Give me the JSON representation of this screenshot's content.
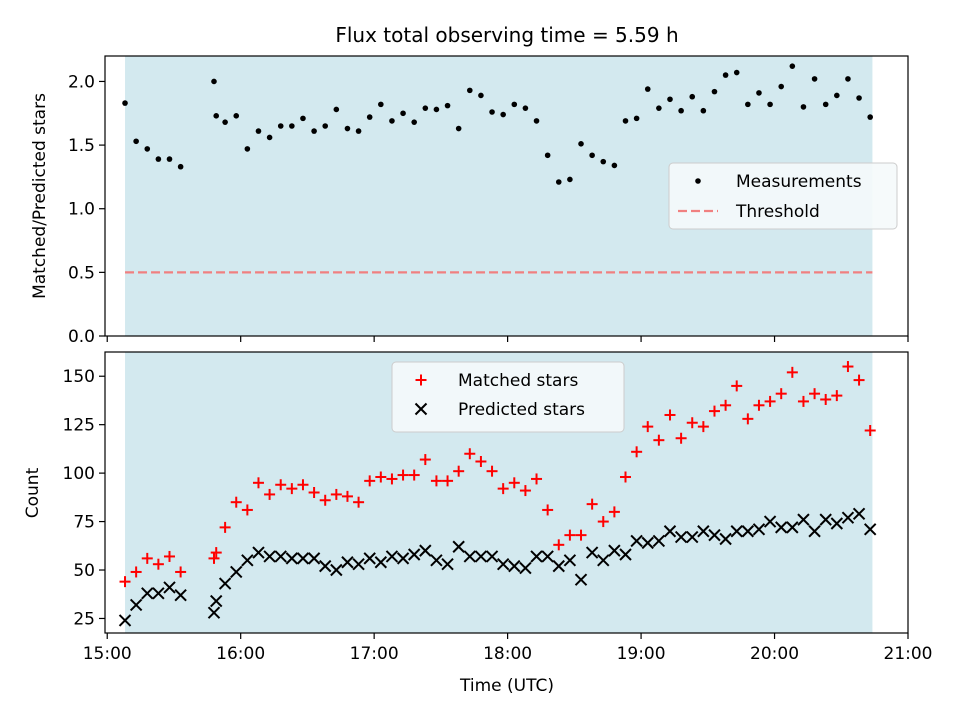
{
  "chart_data": [
    {
      "type": "scatter",
      "title": "Flux total observing time = 5.59 h",
      "ylabel": "Matched/Predicted stars",
      "ylim": [
        0,
        2.2
      ],
      "yticks": [
        "0.0",
        "0.5",
        "1.0",
        "1.5",
        "2.0"
      ],
      "shaded_interval": [
        "15:08",
        "20:44"
      ],
      "threshold": 0.5,
      "legend": {
        "placement": "center-right",
        "entries": [
          "Measurements",
          "Threshold"
        ]
      },
      "series": [
        {
          "name": "Measurements",
          "x": [
            "15:08",
            "15:13",
            "15:18",
            "15:23",
            "15:28",
            "15:33",
            "15:48",
            "15:49",
            "15:53",
            "15:58",
            "16:03",
            "16:08",
            "16:13",
            "16:18",
            "16:23",
            "16:28",
            "16:33",
            "16:38",
            "16:43",
            "16:48",
            "16:53",
            "16:58",
            "17:03",
            "17:08",
            "17:13",
            "17:18",
            "17:23",
            "17:28",
            "17:33",
            "17:38",
            "17:43",
            "17:48",
            "17:53",
            "17:58",
            "18:03",
            "18:08",
            "18:13",
            "18:18",
            "18:23",
            "18:28",
            "18:33",
            "18:38",
            "18:43",
            "18:48",
            "18:53",
            "18:58",
            "19:03",
            "19:08",
            "19:13",
            "19:18",
            "19:23",
            "19:28",
            "19:33",
            "19:38",
            "19:43",
            "19:48",
            "19:53",
            "19:58",
            "20:03",
            "20:08",
            "20:13",
            "20:18",
            "20:23",
            "20:28",
            "20:33",
            "20:38",
            "20:43"
          ],
          "y": [
            1.83,
            1.53,
            1.47,
            1.39,
            1.39,
            1.33,
            2.0,
            1.73,
            1.68,
            1.73,
            1.47,
            1.61,
            1.56,
            1.65,
            1.65,
            1.71,
            1.61,
            1.65,
            1.78,
            1.63,
            1.61,
            1.72,
            1.82,
            1.69,
            1.75,
            1.68,
            1.79,
            1.78,
            1.81,
            1.63,
            1.93,
            1.89,
            1.76,
            1.74,
            1.82,
            1.79,
            1.69,
            1.42,
            1.21,
            1.23,
            1.51,
            1.42,
            1.37,
            1.34,
            1.69,
            1.71,
            1.94,
            1.79,
            1.86,
            1.77,
            1.88,
            1.77,
            1.92,
            2.05,
            2.07,
            1.82,
            1.91,
            1.82,
            1.96,
            2.12,
            1.8,
            2.02,
            1.82,
            1.89,
            2.02,
            1.87,
            1.72
          ]
        },
        {
          "name": "Threshold",
          "x": [
            "15:08",
            "20:44"
          ],
          "y": [
            0.5,
            0.5
          ]
        }
      ]
    },
    {
      "type": "scatter",
      "ylabel": "Count",
      "xlabel": "Time (UTC)",
      "xlim": [
        "14:59",
        "21:00"
      ],
      "xticks": [
        "15:00",
        "16:00",
        "17:00",
        "18:00",
        "19:00",
        "20:00",
        "21:00"
      ],
      "ylim": [
        17.5,
        162.5
      ],
      "yticks": [
        "25",
        "50",
        "75",
        "100",
        "125",
        "150"
      ],
      "shaded_interval": [
        "15:08",
        "20:44"
      ],
      "legend": {
        "placement": "top-center",
        "entries": [
          "Matched stars",
          "Predicted stars"
        ]
      },
      "series": [
        {
          "name": "Matched stars",
          "x": [
            "15:08",
            "15:13",
            "15:18",
            "15:23",
            "15:28",
            "15:33",
            "15:48",
            "15:49",
            "15:53",
            "15:58",
            "16:03",
            "16:08",
            "16:13",
            "16:18",
            "16:23",
            "16:28",
            "16:33",
            "16:38",
            "16:43",
            "16:48",
            "16:53",
            "16:58",
            "17:03",
            "17:08",
            "17:13",
            "17:18",
            "17:23",
            "17:28",
            "17:33",
            "17:38",
            "17:43",
            "17:48",
            "17:53",
            "17:58",
            "18:03",
            "18:08",
            "18:13",
            "18:18",
            "18:23",
            "18:28",
            "18:33",
            "18:38",
            "18:43",
            "18:48",
            "18:53",
            "18:58",
            "19:03",
            "19:08",
            "19:13",
            "19:18",
            "19:23",
            "19:28",
            "19:33",
            "19:38",
            "19:43",
            "19:48",
            "19:53",
            "19:58",
            "20:03",
            "20:08",
            "20:13",
            "20:18",
            "20:23",
            "20:28",
            "20:33",
            "20:38",
            "20:43"
          ],
          "y": [
            44,
            49,
            56,
            53,
            57,
            49,
            56,
            59,
            72,
            85,
            81,
            95,
            89,
            94,
            92,
            94,
            90,
            86,
            89,
            88,
            85,
            96,
            98,
            97,
            99,
            99,
            107,
            96,
            96,
            101,
            110,
            106,
            101,
            92,
            95,
            91,
            97,
            81,
            63,
            68,
            68,
            84,
            75,
            80,
            98,
            111,
            124,
            117,
            130,
            118,
            126,
            124,
            132,
            135,
            145,
            128,
            135,
            137,
            141,
            152,
            137,
            141,
            138,
            140,
            155,
            148,
            122
          ]
        },
        {
          "name": "Predicted stars",
          "x": [
            "15:08",
            "15:13",
            "15:18",
            "15:23",
            "15:28",
            "15:33",
            "15:48",
            "15:49",
            "15:53",
            "15:58",
            "16:03",
            "16:08",
            "16:13",
            "16:18",
            "16:23",
            "16:28",
            "16:33",
            "16:38",
            "16:43",
            "16:48",
            "16:53",
            "16:58",
            "17:03",
            "17:08",
            "17:13",
            "17:18",
            "17:23",
            "17:28",
            "17:33",
            "17:38",
            "17:43",
            "17:48",
            "17:53",
            "17:58",
            "18:03",
            "18:08",
            "18:13",
            "18:18",
            "18:23",
            "18:28",
            "18:33",
            "18:38",
            "18:43",
            "18:48",
            "18:53",
            "18:58",
            "19:03",
            "19:08",
            "19:13",
            "19:18",
            "19:23",
            "19:28",
            "19:33",
            "19:38",
            "19:43",
            "19:48",
            "19:53",
            "19:58",
            "20:03",
            "20:08",
            "20:13",
            "20:18",
            "20:23",
            "20:28",
            "20:33",
            "20:38",
            "20:43"
          ],
          "y": [
            24,
            32,
            38,
            38,
            41,
            37,
            28,
            34,
            43,
            49,
            55,
            59,
            57,
            57,
            56,
            56,
            56,
            52,
            50,
            54,
            53,
            56,
            54,
            57,
            56,
            58,
            60,
            55,
            53,
            62,
            57,
            57,
            57,
            53,
            52,
            51,
            57,
            57,
            52,
            55,
            45,
            59,
            55,
            60,
            58,
            65,
            64,
            65,
            70,
            67,
            67,
            70,
            68,
            66,
            70,
            70,
            71,
            75,
            72,
            72,
            76,
            70,
            76,
            74,
            77,
            79,
            71
          ]
        }
      ]
    }
  ],
  "colors": {
    "band": "#d3e9ef",
    "measurement": "#000000",
    "threshold": "#f08080",
    "matched": "#ff0000",
    "predicted": "#000000"
  }
}
